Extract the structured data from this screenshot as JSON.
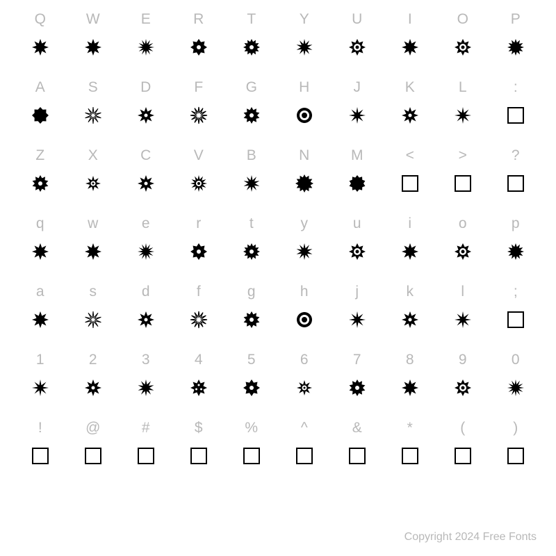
{
  "rows": [
    {
      "labels": [
        "Q",
        "W",
        "E",
        "R",
        "T",
        "Y",
        "U",
        "I",
        "O",
        "P"
      ],
      "glyphs": [
        "star8",
        "star8",
        "burst12",
        "gear8",
        "gear12",
        "burst10",
        "target8",
        "star8",
        "target8",
        "star12"
      ]
    },
    {
      "labels": [
        "A",
        "S",
        "D",
        "F",
        "G",
        "H",
        "J",
        "K",
        "L",
        ":"
      ],
      "glyphs": [
        "blob8",
        "spikes",
        "star8c",
        "burst12o",
        "gear10",
        "target6",
        "burst8",
        "star8c",
        "burst8",
        "box"
      ]
    },
    {
      "labels": [
        "Z",
        "X",
        "C",
        "V",
        "B",
        "N",
        "M",
        "<",
        ">",
        "?"
      ],
      "glyphs": [
        "gear10",
        "flower",
        "star8c",
        "targetsun",
        "burst10",
        "sun",
        "blob10",
        "box",
        "box",
        "box"
      ]
    },
    {
      "labels": [
        "q",
        "w",
        "e",
        "r",
        "t",
        "y",
        "u",
        "i",
        "o",
        "p"
      ],
      "glyphs": [
        "star8",
        "star8",
        "burst12",
        "gear8",
        "gear12",
        "burst10",
        "target8",
        "star8",
        "target8",
        "star12"
      ]
    },
    {
      "labels": [
        "a",
        "s",
        "d",
        "f",
        "g",
        "h",
        "j",
        "k",
        "l",
        ";"
      ],
      "glyphs": [
        "star8",
        "spikes",
        "star8c",
        "burst12o",
        "gear10",
        "target6",
        "burst8",
        "star8c",
        "burst8",
        "box"
      ]
    },
    {
      "labels": [
        "1",
        "2",
        "3",
        "4",
        "5",
        "6",
        "7",
        "8",
        "9",
        "0"
      ],
      "glyphs": [
        "burst8",
        "star8c",
        "burst10",
        "dots",
        "gear8",
        "flower",
        "gear10",
        "star8",
        "target8",
        "burst12"
      ]
    },
    {
      "labels": [
        "!",
        "@",
        "#",
        "$",
        "%",
        "^",
        "&",
        "*",
        "(",
        ")"
      ],
      "glyphs": [
        "box",
        "box",
        "box",
        "box",
        "box",
        "box",
        "box",
        "box",
        "box",
        "box"
      ]
    }
  ],
  "copyright": "Copyright 2024 Free Fonts",
  "colors": {
    "label": "#b8b8b8",
    "glyph": "#000000",
    "bg": "#ffffff"
  },
  "font_size_label": 21,
  "grid_cols": 10
}
